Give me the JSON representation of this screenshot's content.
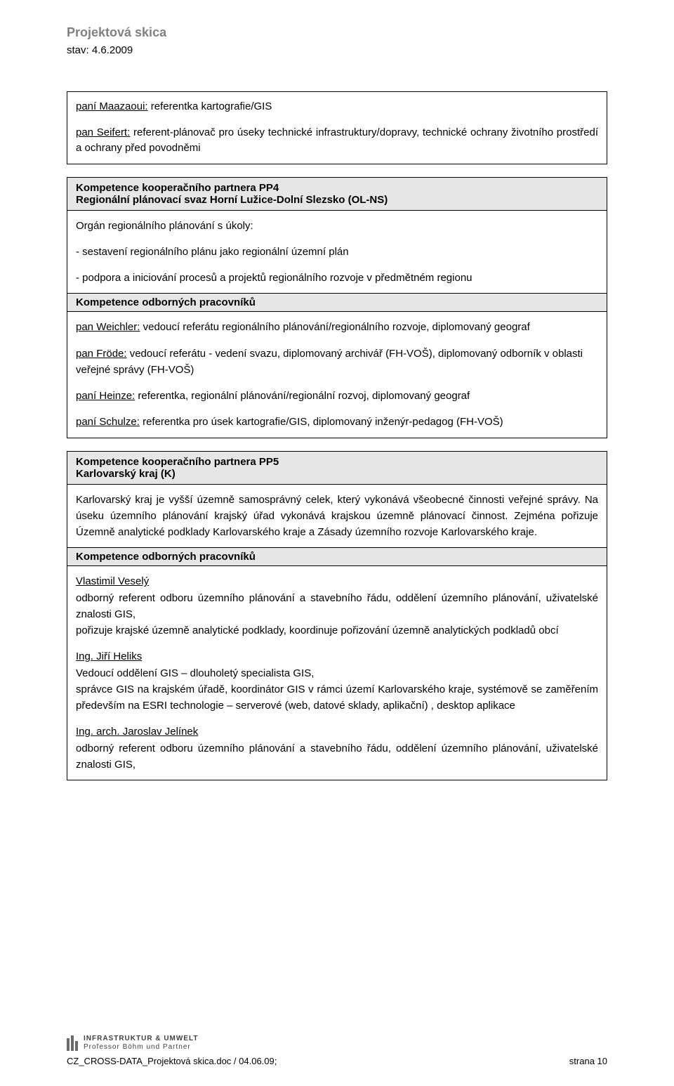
{
  "header": {
    "title": "Projektová skica",
    "status": "stav: 4.6.2009"
  },
  "block1": {
    "p1_name": "paní Maazaoui:",
    "p1_desc": " referentka kartografie/GIS",
    "p2_name": "pan Seifert:",
    "p2_desc": " referent-plánovač pro úseky technické infrastruktury/dopravy, technické ochrany životního prostředí a ochrany před povodněmi"
  },
  "block2": {
    "title_line1": "Kompetence kooperačního partnera PP4",
    "title_line2": "Regionální plánovací svaz Horní Lužice-Dolní Slezsko (OL-NS)",
    "intro": "Orgán regionálního plánování s úkoly:",
    "bullet1": "- sestavení regionálního plánu jako regionální územní plán",
    "bullet2": "- podpora a iniciování procesů a projektů regionálního rozvoje v předmětném regionu",
    "mid_title": "Kompetence odborných pracovníků",
    "w_name": "pan Weichler:",
    "w_desc": " vedoucí referátu regionálního plánování/regionálního rozvoje, diplomovaný geograf",
    "f_name": "pan Fröde:",
    "f_desc": " vedoucí referátu - vedení svazu, diplomovaný archivář (FH-VOŠ), diplomovaný odborník v oblasti veřejné správy   (FH-VOŠ)",
    "h_name": "paní Heinze:",
    "h_desc": " referentka,  regionální plánování/regionální rozvoj, diplomovaný geograf",
    "s_name": "paní Schulze:",
    "s_desc": " referentka pro úsek kartografie/GIS, diplomovaný inženýr-pedagog (FH-VOŠ)"
  },
  "block3": {
    "title_line1": "Kompetence kooperačního partnera PP5",
    "title_line2": "Karlovarský kraj (K)",
    "para": "Karlovarský kraj je vyšší územně samosprávný celek, který vykonává všeobecné činnosti veřejné správy. Na úseku územního plánování krajský úřad vykonává krajskou územně plánovací činnost. Zejména pořizuje Územně analytické podklady Karlovarského kraje a Zásady územního rozvoje Karlovarského kraje.",
    "mid_title": "Kompetence odborných pracovníků",
    "p1_name": "Vlastimil Veselý",
    "p1_l1": "odborný referent odboru územního plánování a stavebního řádu, oddělení územního plánování, uživatelské znalosti GIS,",
    "p1_l2": "pořizuje krajské územně analytické podklady, koordinuje pořizování územně analytických podkladů obcí",
    "p2_name": "Ing. Jiří Heliks",
    "p2_l1": "Vedoucí oddělení GIS – dlouholetý specialista GIS,",
    "p2_l2": "správce GIS na krajském úřadě, koordinátor GIS v rámci území Karlovarského kraje, systémově se zaměřením především na ESRI technologie – serverové (web, datové sklady, aplikační) , desktop aplikace",
    "p3_name": "Ing. arch. Jaroslav Jelínek",
    "p3_l1": "odborný referent odboru územního plánování a stavebního řádu, oddělení územního plánování, uživatelské znalosti GIS,"
  },
  "footer": {
    "logo_line1": "INFRASTRUKTUR & UMWELT",
    "logo_line2": "Professor Böhm und Partner",
    "page_label": "strana 10",
    "doc_ref": "CZ_CROSS-DATA_Projektová skica.doc / 04.06.09;"
  }
}
